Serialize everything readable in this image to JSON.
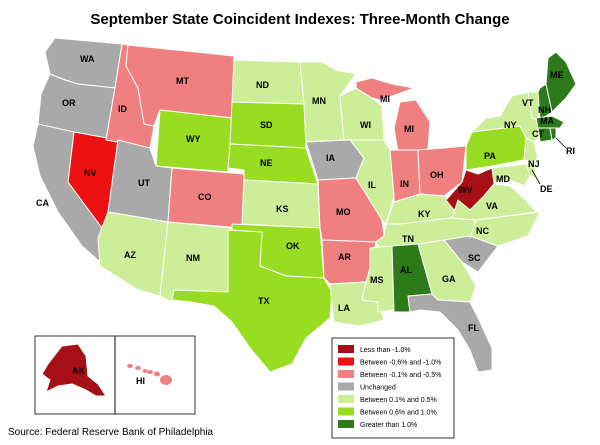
{
  "title": "September State Coincident Indexes: Three-Month Change",
  "source": "Source: Federal Reserve Bank of Philadelphia",
  "legend": [
    {
      "label": "Less than -1.0%",
      "color": "#a50f15"
    },
    {
      "label": "Between -0.6% and -1.0%",
      "color": "#ee1111"
    },
    {
      "label": "Between -0.1% and -0.5%",
      "color": "#f08080"
    },
    {
      "label": "Unchanged",
      "color": "#a9a9a9"
    },
    {
      "label": "Between 0.1% and 0.5%",
      "color": "#ccee99"
    },
    {
      "label": "Between 0.6% and 1.0%",
      "color": "#99dd22"
    },
    {
      "label": "Greater than 1.0%",
      "color": "#2d7a1a"
    }
  ],
  "states": [
    {
      "abbr": "WA",
      "category": 3
    },
    {
      "abbr": "OR",
      "category": 3
    },
    {
      "abbr": "CA",
      "category": 3
    },
    {
      "abbr": "ID",
      "category": 2
    },
    {
      "abbr": "MT",
      "category": 2
    },
    {
      "abbr": "NV",
      "category": 1
    },
    {
      "abbr": "UT",
      "category": 3
    },
    {
      "abbr": "WY",
      "category": 5
    },
    {
      "abbr": "CO",
      "category": 2
    },
    {
      "abbr": "AZ",
      "category": 4
    },
    {
      "abbr": "NM",
      "category": 4
    },
    {
      "abbr": "ND",
      "category": 4
    },
    {
      "abbr": "SD",
      "category": 5
    },
    {
      "abbr": "NE",
      "category": 5
    },
    {
      "abbr": "KS",
      "category": 4
    },
    {
      "abbr": "OK",
      "category": 5
    },
    {
      "abbr": "TX",
      "category": 5
    },
    {
      "abbr": "MN",
      "category": 4
    },
    {
      "abbr": "IA",
      "category": 3
    },
    {
      "abbr": "MO",
      "category": 2
    },
    {
      "abbr": "AR",
      "category": 2
    },
    {
      "abbr": "LA",
      "category": 4
    },
    {
      "abbr": "WI",
      "category": 4
    },
    {
      "abbr": "IL",
      "category": 4
    },
    {
      "abbr": "MI",
      "category": 2
    },
    {
      "abbr": "IN",
      "category": 2
    },
    {
      "abbr": "OH",
      "category": 2
    },
    {
      "abbr": "KY",
      "category": 4
    },
    {
      "abbr": "TN",
      "category": 4
    },
    {
      "abbr": "MS",
      "category": 4
    },
    {
      "abbr": "AL",
      "category": 6
    },
    {
      "abbr": "GA",
      "category": 4
    },
    {
      "abbr": "FL",
      "category": 3
    },
    {
      "abbr": "SC",
      "category": 3
    },
    {
      "abbr": "NC",
      "category": 4
    },
    {
      "abbr": "VA",
      "category": 4
    },
    {
      "abbr": "WV",
      "category": 0
    },
    {
      "abbr": "MD",
      "category": 4
    },
    {
      "abbr": "DE",
      "category": 4
    },
    {
      "abbr": "PA",
      "category": 5
    },
    {
      "abbr": "NY",
      "category": 4
    },
    {
      "abbr": "NJ",
      "category": 4
    },
    {
      "abbr": "CT",
      "category": 6
    },
    {
      "abbr": "RI",
      "category": 6
    },
    {
      "abbr": "MA",
      "category": 6
    },
    {
      "abbr": "VT",
      "category": 4
    },
    {
      "abbr": "NH",
      "category": 6
    },
    {
      "abbr": "ME",
      "category": 6
    },
    {
      "abbr": "AK",
      "category": 0
    },
    {
      "abbr": "HI",
      "category": 2
    }
  ]
}
